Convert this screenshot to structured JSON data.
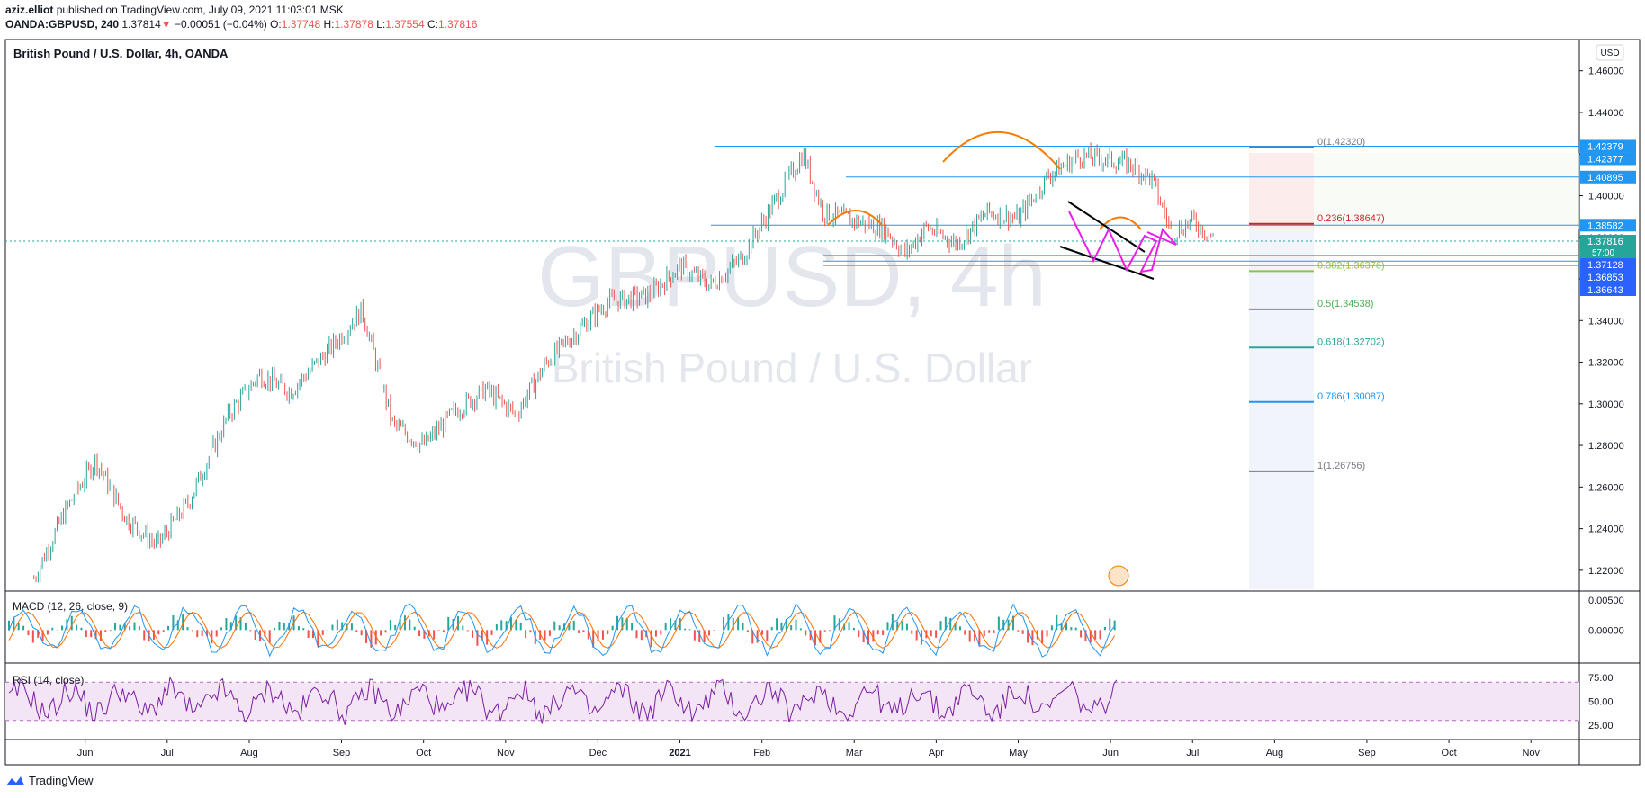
{
  "header": {
    "author": "aziz.elliot",
    "published": "published on TradingView.com, July 09, 2021 11:03:01 MSK",
    "symbol": "OANDA:GBPUSD, 240",
    "last": "1.37814",
    "change": "−0.00051 (−0.04%)",
    "o_label": "O:",
    "o_value": "1.37748",
    "h_label": "H:",
    "h_value": "1.37878",
    "l_label": "L:",
    "l_value": "1.37554",
    "c_label": "C:",
    "c_value": "1.37816"
  },
  "chart_title": "British Pound / U.S. Dollar, 4h, OANDA",
  "currency_badge": "USD",
  "watermark": {
    "line1": "GBPUSD, 4h",
    "line2": "British Pound / U.S. Dollar"
  },
  "footer_brand": "TradingView",
  "colors": {
    "up": "#26a69a",
    "down": "#ef5350",
    "hline": "#2196f3",
    "arc": "#f57c00",
    "projection": "#e91ee8",
    "macd": "#2196f3",
    "signal": "#ff6d00",
    "rsi": "#7b1fa2",
    "rsi_band": "#f3e5f5"
  },
  "chart_data": {
    "type": "line",
    "main": {
      "ylim": [
        1.21,
        1.475
      ],
      "y_ticks": [
        "1.46000",
        "1.44000",
        "1.42000",
        "1.40000",
        "1.38000",
        "1.36000",
        "1.34000",
        "1.32000",
        "1.30000",
        "1.28000",
        "1.26000",
        "1.24000",
        "1.22000"
      ],
      "x_ticks": [
        "Jun",
        "Jul",
        "Aug",
        "Sep",
        "Oct",
        "Nov",
        "Dec",
        "2021",
        "Feb",
        "Mar",
        "Apr",
        "May",
        "Jun",
        "Jul",
        "Aug",
        "Sep",
        "Oct",
        "Nov"
      ],
      "x_tick_dates": [
        2020.42,
        2020.5,
        2020.58,
        2020.67,
        2020.75,
        2020.83,
        2020.92,
        2021.0,
        2021.08,
        2021.17,
        2021.25,
        2021.33,
        2021.42,
        2021.5,
        2021.58,
        2021.67,
        2021.75,
        2021.83
      ],
      "price_path": [
        [
          2020.37,
          1.216
        ],
        [
          2020.4,
          1.248
        ],
        [
          2020.43,
          1.273
        ],
        [
          2020.46,
          1.245
        ],
        [
          2020.49,
          1.232
        ],
        [
          2020.52,
          1.252
        ],
        [
          2020.56,
          1.295
        ],
        [
          2020.59,
          1.314
        ],
        [
          2020.62,
          1.306
        ],
        [
          2020.66,
          1.327
        ],
        [
          2020.69,
          1.345
        ],
        [
          2020.72,
          1.29
        ],
        [
          2020.75,
          1.28
        ],
        [
          2020.78,
          1.296
        ],
        [
          2020.81,
          1.307
        ],
        [
          2020.84,
          1.295
        ],
        [
          2020.87,
          1.32
        ],
        [
          2020.9,
          1.335
        ],
        [
          2020.93,
          1.349
        ],
        [
          2020.97,
          1.352
        ],
        [
          2021.0,
          1.366
        ],
        [
          2021.03,
          1.357
        ],
        [
          2021.06,
          1.37
        ],
        [
          2021.09,
          1.395
        ],
        [
          2021.12,
          1.42
        ],
        [
          2021.14,
          1.392
        ],
        [
          2021.17,
          1.388
        ],
        [
          2021.2,
          1.384
        ],
        [
          2021.22,
          1.372
        ],
        [
          2021.24,
          1.385
        ],
        [
          2021.27,
          1.377
        ],
        [
          2021.3,
          1.392
        ],
        [
          2021.33,
          1.389
        ],
        [
          2021.36,
          1.41
        ],
        [
          2021.39,
          1.419
        ],
        [
          2021.42,
          1.417
        ],
        [
          2021.44,
          1.415
        ],
        [
          2021.46,
          1.408
        ],
        [
          2021.48,
          1.382
        ],
        [
          2021.5,
          1.388
        ],
        [
          2021.52,
          1.38
        ]
      ],
      "horizontal_levels": [
        {
          "value": 1.42377,
          "label": "1.42377"
        },
        {
          "value": 1.40895,
          "label": "1.40895"
        },
        {
          "value": 1.38582,
          "label": "1.38582"
        },
        {
          "value": 1.37128,
          "label": "1.37128"
        },
        {
          "value": 1.36853,
          "label": "1.36853"
        },
        {
          "value": 1.36643,
          "label": "1.36643"
        }
      ],
      "price_labels": [
        {
          "value": 1.42379,
          "label": "1.42379",
          "color": "#2196f3"
        },
        {
          "value": 1.42377,
          "label": "1.42377",
          "color": "#2196f3"
        },
        {
          "value": 1.40895,
          "label": "1.40895",
          "color": "#2196f3"
        },
        {
          "value": 1.38582,
          "label": "1.38582",
          "color": "#2196f3"
        },
        {
          "value": 1.37816,
          "label": "1.37816",
          "sub": "57:00",
          "color": "#26a69a"
        },
        {
          "value": 1.37128,
          "label": "1.37128",
          "color": "#2962ff"
        },
        {
          "value": 1.36853,
          "label": "1.36853",
          "color": "#2962ff"
        },
        {
          "value": 1.36643,
          "label": "1.36643",
          "color": "#2962ff"
        }
      ],
      "fibonacci": [
        {
          "ratio": "0",
          "price": 1.4232,
          "label": "0(1.42320)",
          "color": "#787b86"
        },
        {
          "ratio": "0.236",
          "price": 1.38647,
          "label": "0.236(1.38647)",
          "color": "#c62828"
        },
        {
          "ratio": "0.382",
          "price": 1.36376,
          "label": "0.382(1.36376)",
          "color": "#8bc34a"
        },
        {
          "ratio": "0.5",
          "price": 1.34538,
          "label": "0.5(1.34538)",
          "color": "#4caf50"
        },
        {
          "ratio": "0.618",
          "price": 1.32702,
          "label": "0.618(1.32702)",
          "color": "#26a69a"
        },
        {
          "ratio": "0.786",
          "price": 1.30087,
          "label": "0.786(1.30087)",
          "color": "#2196f3"
        },
        {
          "ratio": "1",
          "price": 1.26756,
          "label": "1(1.26756)",
          "color": "#787b86"
        }
      ]
    },
    "macd": {
      "label": "MACD (12, 26, close, 9)",
      "y_ticks": [
        "0.00500",
        "0.00000"
      ],
      "ylim": [
        -0.0055,
        0.0065
      ]
    },
    "rsi": {
      "label": "RSI (14, close)",
      "y_ticks": [
        "75.00",
        "50.00",
        "25.00"
      ],
      "ylim": [
        10,
        90
      ],
      "band": [
        30,
        70
      ]
    }
  }
}
